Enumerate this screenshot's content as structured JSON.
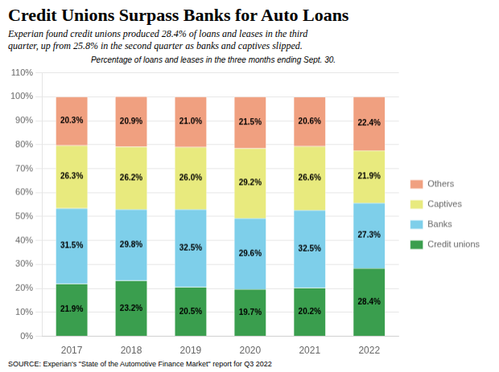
{
  "chart_data": {
    "type": "bar",
    "title": "Credit Unions Surpass Banks for Auto Loans",
    "subtitle": "Experian found credit unions produced 28.4% of loans and leases in the third\nquarter, up from 25.8% in the second quarter as banks and captives slipped.",
    "annotation": "Percentage of loans and leases in the three months ending Sept. 30.",
    "source": "SOURCE:  Experian's \"State of the Automotive Finance Market\" report for Q3 2022",
    "categories": [
      "2017",
      "2018",
      "2019",
      "2020",
      "2021",
      "2022"
    ],
    "series": [
      {
        "name": "Credit unions",
        "color": "#3a9e4e",
        "values": [
          21.9,
          23.2,
          20.5,
          19.7,
          20.2,
          28.4
        ],
        "value_labels": [
          "21.9%",
          "23.2%",
          "20.5%",
          "19.7%",
          "20.2%",
          "28.4%"
        ]
      },
      {
        "name": "Banks",
        "color": "#7ecfea",
        "values": [
          31.5,
          29.8,
          32.5,
          29.6,
          32.5,
          27.3
        ],
        "value_labels": [
          "31.5%",
          "29.8%",
          "32.5%",
          "29.6%",
          "32.5%",
          "27.3%"
        ]
      },
      {
        "name": "Captives",
        "color": "#e8ea7e",
        "values": [
          26.3,
          26.2,
          26.0,
          29.2,
          26.6,
          21.9
        ],
        "value_labels": [
          "26.3%",
          "26.2%",
          "26.0%",
          "29.2%",
          "26.6%",
          "21.9%"
        ]
      },
      {
        "name": "Others",
        "color": "#f0a080",
        "values": [
          20.3,
          20.9,
          21.0,
          21.5,
          20.6,
          22.4
        ],
        "value_labels": [
          "20.3%",
          "20.9%",
          "21.0%",
          "21.5%",
          "20.6%",
          "22.4%"
        ]
      }
    ],
    "stacked": true,
    "data_labels": true,
    "grid": true,
    "legend": "right",
    "ylim": [
      0,
      110
    ],
    "yticks": [
      {
        "value": 0,
        "label": "0%"
      },
      {
        "value": 10,
        "label": "10%"
      },
      {
        "value": 20,
        "label": "20%"
      },
      {
        "value": 30,
        "label": "30%"
      },
      {
        "value": 40,
        "label": "40%"
      },
      {
        "value": 50,
        "label": "50%"
      },
      {
        "value": 60,
        "label": "60%"
      },
      {
        "value": 70,
        "label": "70%"
      },
      {
        "value": 80,
        "label": "80%"
      },
      {
        "value": 90,
        "label": "90%"
      },
      {
        "value": 100,
        "label": "100%"
      },
      {
        "value": 110,
        "label": "110%"
      }
    ]
  }
}
